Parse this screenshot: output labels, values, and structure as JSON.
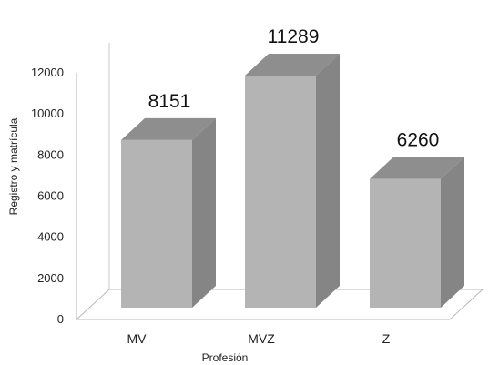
{
  "chart_data": {
    "type": "bar",
    "categories": [
      "MV",
      "MVZ",
      "Z"
    ],
    "values": [
      8151,
      11289,
      6260
    ],
    "data_labels": [
      "8151",
      "11289",
      "6260"
    ],
    "xlabel": "Profesión",
    "ylabel": "Registro y matrícula",
    "ylim": [
      0,
      12000
    ],
    "yticks": [
      "0",
      "2000",
      "4000",
      "6000",
      "8000",
      "10000",
      "12000"
    ],
    "style": "3d-column",
    "grid": false,
    "legend": "none",
    "colors": {
      "bar_front": "#b4b4b4",
      "bar_side": "#858585",
      "bar_top": "#8e8e8e",
      "floor_edge": "#b8b8b8"
    }
  }
}
